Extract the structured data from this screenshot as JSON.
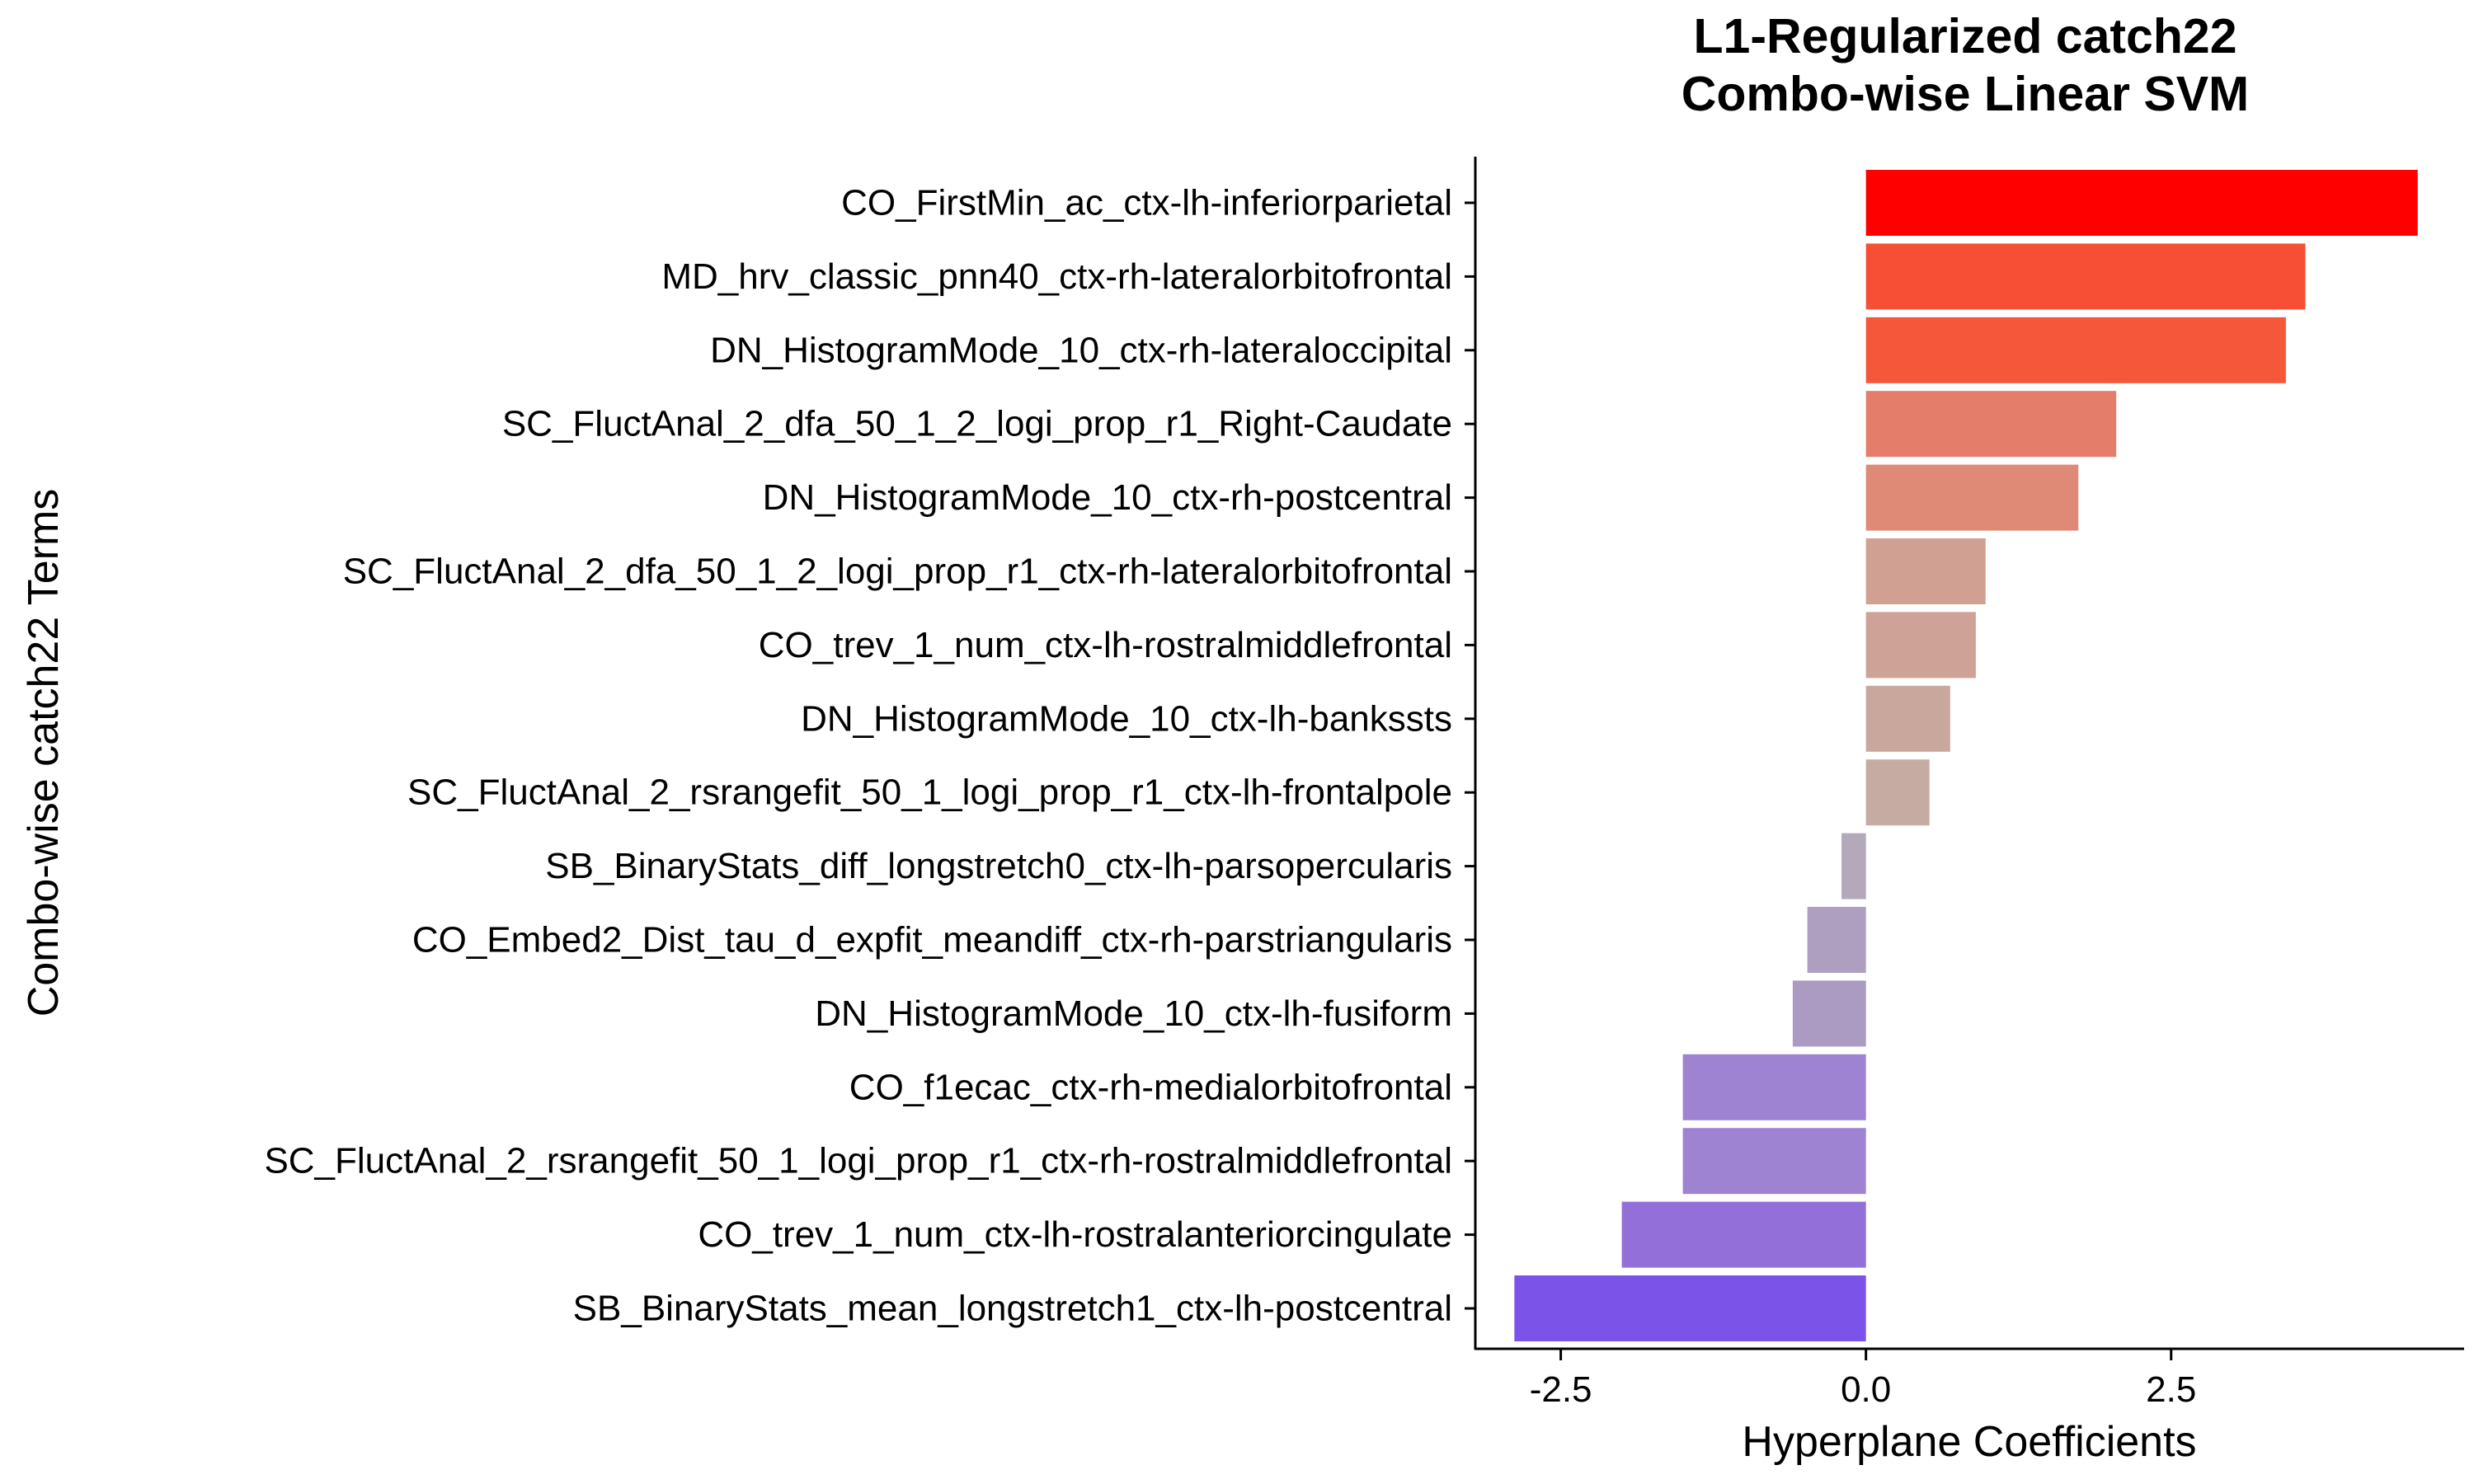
{
  "chart_data": {
    "type": "bar",
    "orientation": "horizontal",
    "title_lines": [
      "L1-Regularized catch22",
      "Combo-wise Linear SVM"
    ],
    "xlabel": "Hyperplane Coefficients",
    "ylabel": "Combo-wise catch22 Terms",
    "xlim": [
      -3.2,
      4.9
    ],
    "xticks": [
      -2.5,
      0.0,
      2.5
    ],
    "xtick_labels": [
      "-2.5",
      "0.0",
      "2.5"
    ],
    "grid": false,
    "legend": "none",
    "categories": [
      "CO_FirstMin_ac_ctx-lh-inferiorparietal",
      "MD_hrv_classic_pnn40_ctx-rh-lateralorbitofrontal",
      "DN_HistogramMode_10_ctx-rh-lateraloccipital",
      "SC_FluctAnal_2_dfa_50_1_2_logi_prop_r1_Right-Caudate",
      "DN_HistogramMode_10_ctx-rh-postcentral",
      "SC_FluctAnal_2_dfa_50_1_2_logi_prop_r1_ctx-rh-lateralorbitofrontal",
      "CO_trev_1_num_ctx-lh-rostralmiddlefrontal",
      "DN_HistogramMode_10_ctx-lh-bankssts",
      "SC_FluctAnal_2_rsrangefit_50_1_logi_prop_r1_ctx-lh-frontalpole",
      "SB_BinaryStats_diff_longstretch0_ctx-lh-parsopercularis",
      "CO_Embed2_Dist_tau_d_expfit_meandiff_ctx-rh-parstriangularis",
      "DN_HistogramMode_10_ctx-lh-fusiform",
      "CO_f1ecac_ctx-rh-medialorbitofrontal",
      "SC_FluctAnal_2_rsrangefit_50_1_logi_prop_r1_ctx-rh-rostralmiddlefrontal",
      "CO_trev_1_num_ctx-lh-rostralanteriorcingulate",
      "SB_BinaryStats_mean_longstretch1_ctx-lh-postcentral"
    ],
    "values": [
      4.52,
      3.6,
      3.44,
      2.05,
      1.74,
      0.98,
      0.9,
      0.69,
      0.52,
      -0.2,
      -0.48,
      -0.6,
      -1.5,
      -1.5,
      -2.0,
      -2.88
    ],
    "colors": [
      "#ff0000",
      "#f64f35",
      "#f4573a",
      "#e47d69",
      "#df8a77",
      "#d0a093",
      "#cea296",
      "#c9a79c",
      "#c6aba2",
      "#b3a9bb",
      "#ae9fc0",
      "#ab9ac2",
      "#9d83d2",
      "#9d83d2",
      "#9370d9",
      "#7b53e8"
    ]
  }
}
